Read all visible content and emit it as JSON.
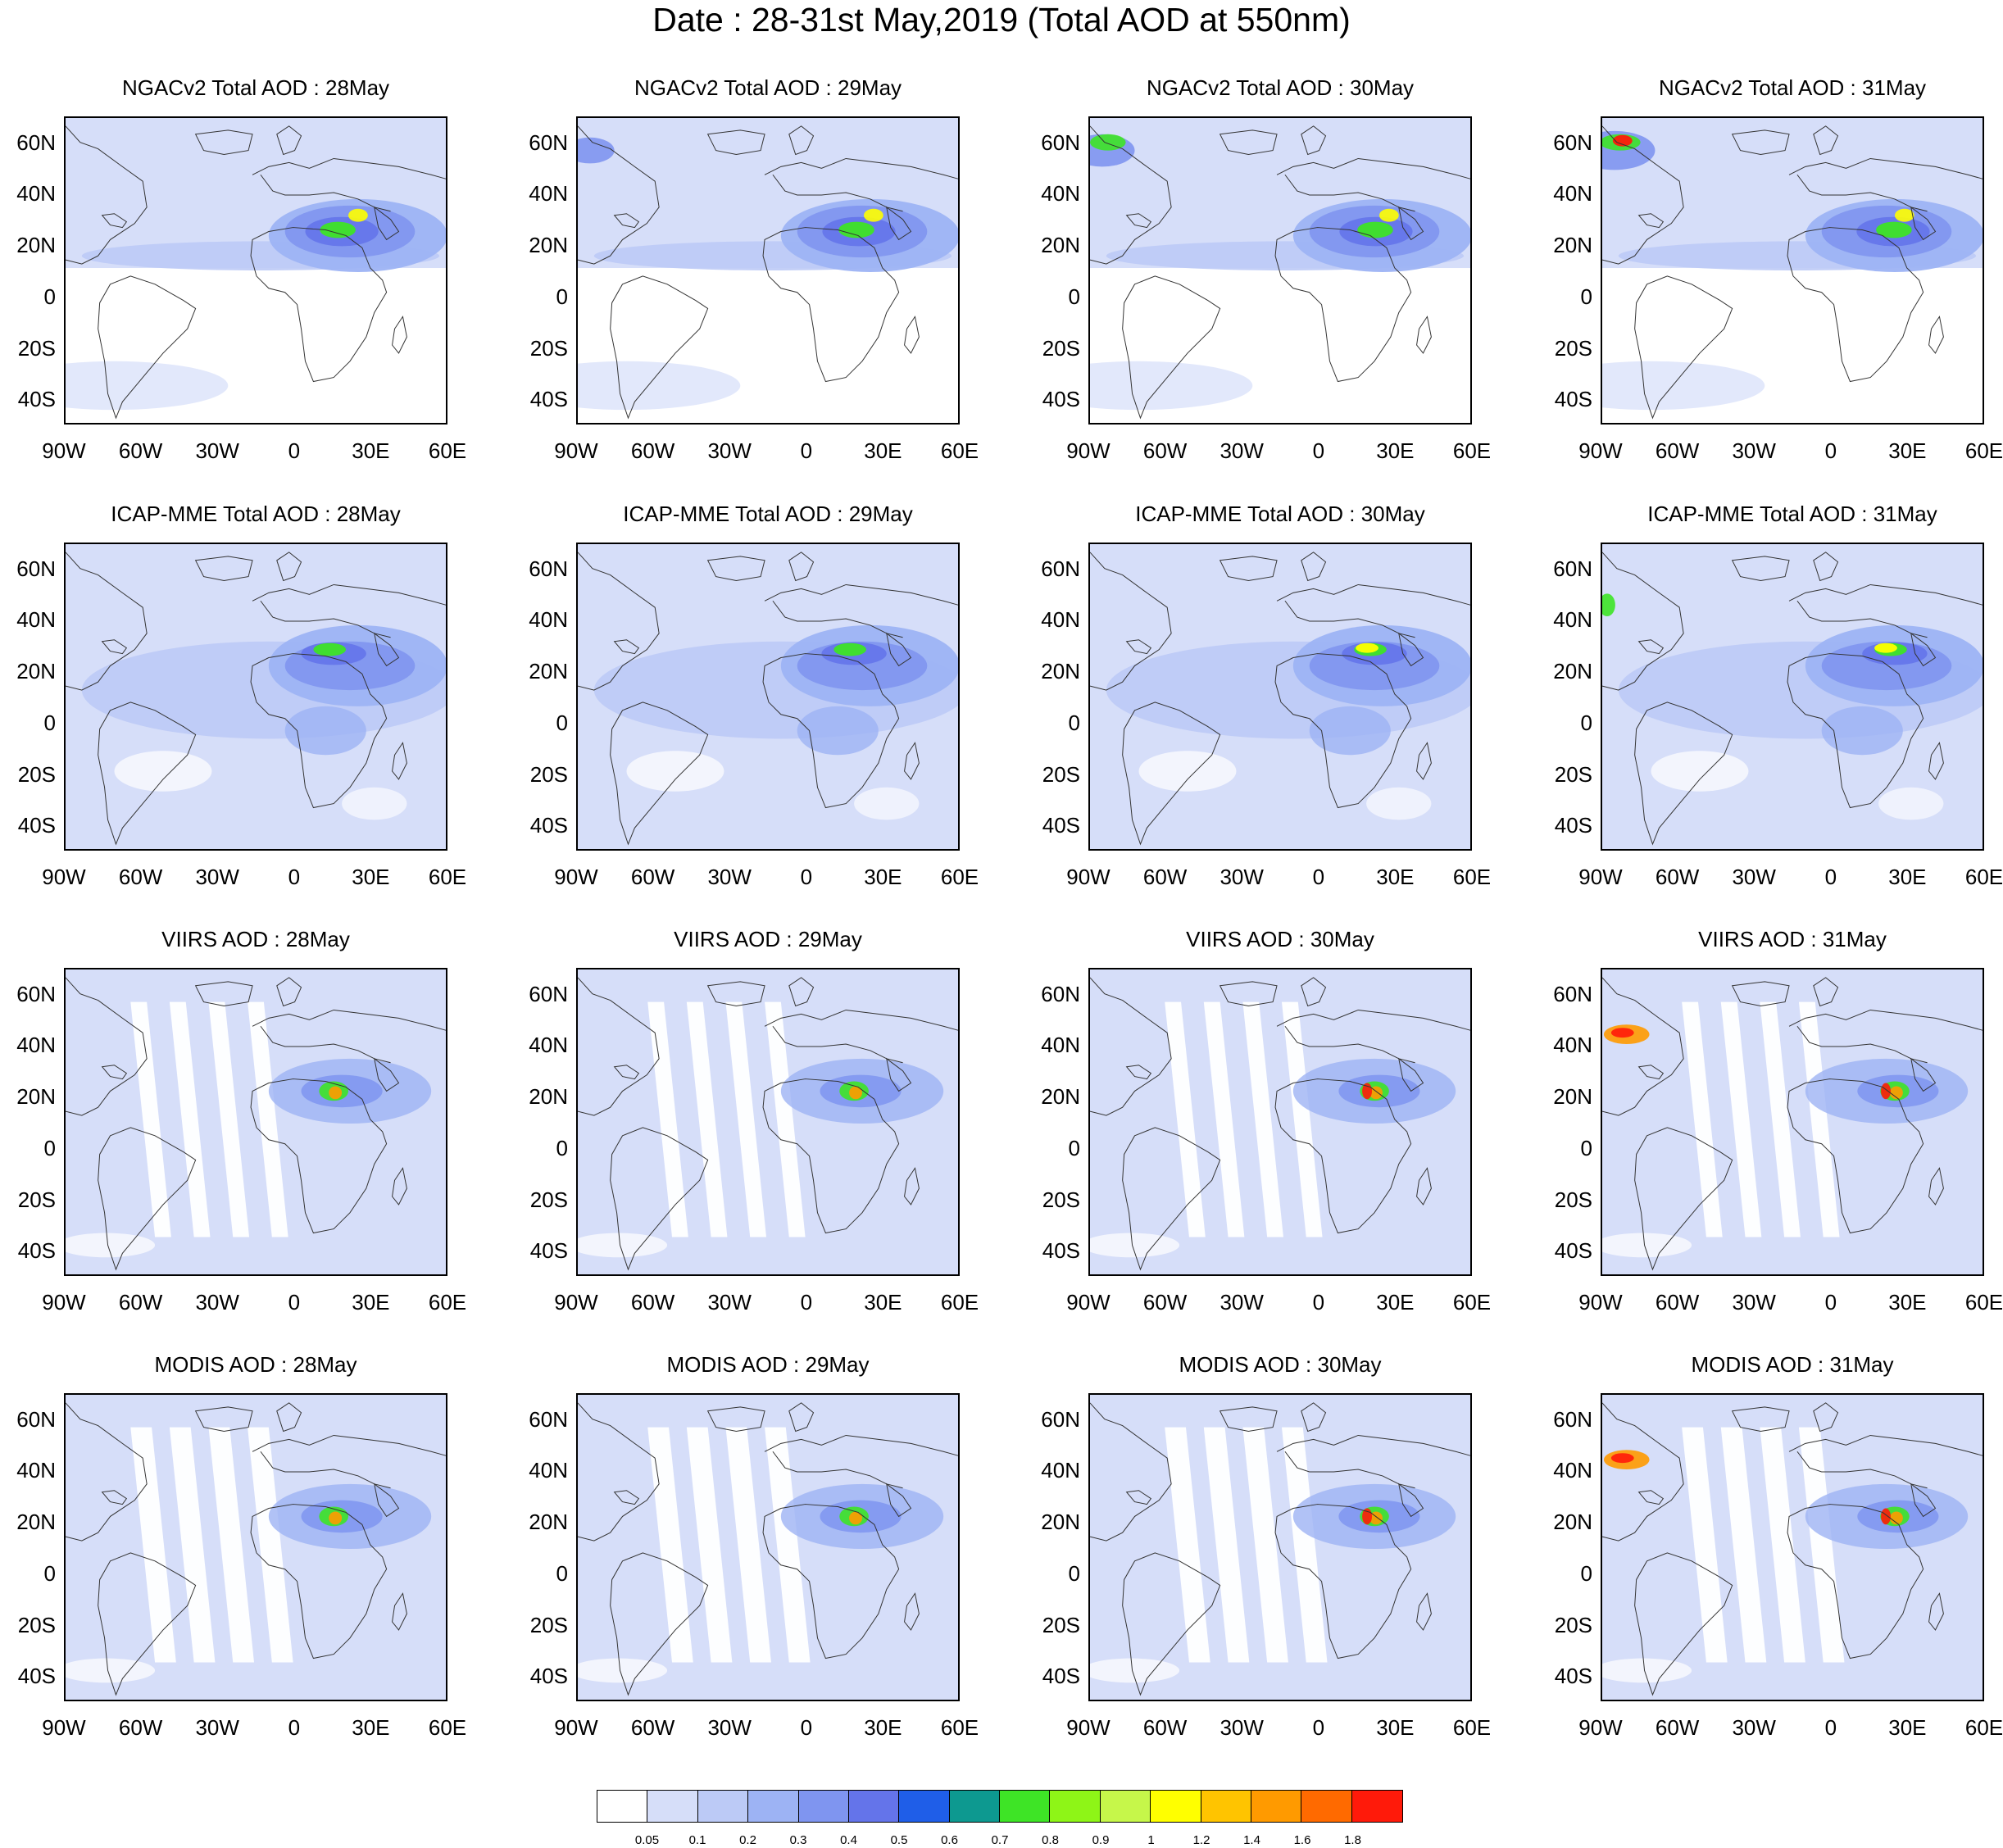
{
  "title": "Date : 28-31st May,2019 (Total AOD at 550nm)",
  "rows": [
    {
      "titles": [
        "NGACv2 Total AOD : 28May",
        "NGACv2 Total AOD : 29May",
        "NGACv2 Total AOD : 30May",
        "NGACv2 Total AOD : 31May"
      ]
    },
    {
      "titles": [
        "ICAP-MME Total AOD : 28May",
        "ICAP-MME Total AOD : 29May",
        "ICAP-MME Total AOD : 30May",
        "ICAP-MME Total AOD : 31May"
      ]
    },
    {
      "titles": [
        "VIIRS AOD : 28May",
        "VIIRS AOD : 29May",
        "VIIRS AOD : 30May",
        "VIIRS AOD : 31May"
      ]
    },
    {
      "titles": [
        "MODIS AOD : 28May",
        "MODIS AOD : 29May",
        "MODIS AOD : 30May",
        "MODIS AOD : 31May"
      ]
    }
  ],
  "lat_labels": [
    "60N",
    "40N",
    "20N",
    "0",
    "20S",
    "40S"
  ],
  "lon_labels": [
    "90W",
    "60W",
    "30W",
    "0",
    "30E",
    "60E"
  ],
  "colorbar": {
    "labels": [
      "0.05",
      "0.1",
      "0.2",
      "0.3",
      "0.4",
      "0.5",
      "0.6",
      "0.7",
      "0.8",
      "0.9",
      "1",
      "1.2",
      "1.4",
      "1.6",
      "1.8"
    ],
    "colors": [
      "#ffffff",
      "#d6def9",
      "#bccaf6",
      "#9db3f4",
      "#7f95f0",
      "#6474ea",
      "#1f5ee8",
      "#0d9990",
      "#3ee426",
      "#8ef517",
      "#c6f74a",
      "#ffff00",
      "#ffc400",
      "#ff9a00",
      "#ff6a00",
      "#ff1a0a"
    ]
  },
  "map_colors": {
    "light": "#d6def9",
    "mid": "#bccaf6",
    "medium": "#9db3f4",
    "dark": "#7f95f0",
    "deep": "#6474ea",
    "green": "#3ee426",
    "yellow": "#ffff00",
    "orange": "#ff9a00",
    "red": "#ff1a0a"
  }
}
